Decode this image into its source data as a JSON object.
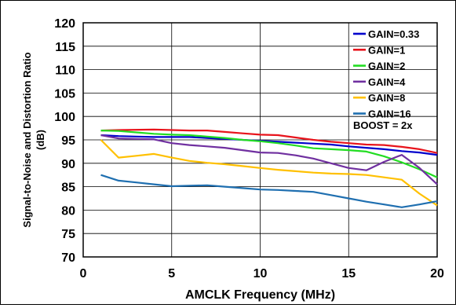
{
  "chart_data": {
    "type": "line",
    "xlabel": "AMCLK Frequency (MHz)",
    "ylabel": "Signal-to-Noise and Distortion Ratio",
    "ylabel_unit": "(dB)",
    "xlim": [
      0,
      20
    ],
    "ylim": [
      70,
      120
    ],
    "x_ticks": [
      0,
      5,
      10,
      15,
      20
    ],
    "y_ticks": [
      70,
      75,
      80,
      85,
      90,
      95,
      100,
      105,
      110,
      115,
      120
    ],
    "grid": true,
    "legend_position": "top-right",
    "annotation": "BOOST = 2x",
    "series": [
      {
        "name": "GAIN=0.33",
        "color": "#0000cc",
        "x": [
          1,
          2,
          3,
          4,
          5,
          6,
          7,
          8,
          9,
          10,
          11,
          12,
          13,
          14,
          15,
          16,
          17,
          18,
          19,
          20
        ],
        "y": [
          96.0,
          95.8,
          95.7,
          95.6,
          95.6,
          95.6,
          95.4,
          95.2,
          95.0,
          94.8,
          94.6,
          94.4,
          94.2,
          94.0,
          93.6,
          93.3,
          93.0,
          92.6,
          92.3,
          91.8
        ]
      },
      {
        "name": "GAIN=1",
        "color": "#e8141c",
        "x": [
          1,
          2,
          4,
          5,
          6,
          7,
          8,
          9,
          10,
          11,
          12,
          13,
          14,
          15,
          16,
          17,
          18,
          19,
          20
        ],
        "y": [
          97.0,
          97.1,
          97.2,
          97.1,
          97.0,
          97.0,
          96.7,
          96.4,
          96.1,
          96.0,
          95.5,
          95.0,
          94.6,
          94.3,
          94.0,
          93.9,
          93.5,
          93.0,
          92.2
        ]
      },
      {
        "name": "GAIN=2",
        "color": "#22dd22",
        "x": [
          1,
          2,
          3,
          4,
          5,
          6,
          7,
          8,
          9,
          10,
          11,
          12,
          13,
          14,
          15,
          16,
          17,
          18,
          19,
          20
        ],
        "y": [
          97.0,
          96.9,
          96.6,
          96.3,
          96.1,
          96.0,
          95.7,
          95.4,
          95.0,
          94.7,
          94.3,
          93.8,
          93.2,
          93.0,
          92.8,
          92.5,
          91.5,
          90.2,
          88.7,
          87.0
        ]
      },
      {
        "name": "GAIN=4",
        "color": "#7030a0",
        "x": [
          1,
          2,
          3,
          4,
          5,
          6,
          7,
          8,
          9,
          10,
          11,
          12,
          13,
          14,
          15,
          16,
          17,
          18,
          19,
          20
        ],
        "y": [
          96.0,
          95.3,
          95.2,
          95.1,
          94.3,
          93.9,
          93.6,
          93.3,
          92.8,
          92.3,
          92.2,
          91.7,
          91.0,
          90.0,
          89.0,
          88.5,
          90.3,
          91.8,
          89.0,
          85.5
        ]
      },
      {
        "name": "GAIN=8",
        "color": "#ffc000",
        "x": [
          1,
          2,
          3,
          4,
          5,
          6,
          7,
          8,
          9,
          10,
          11,
          12,
          13,
          14,
          15,
          16,
          17,
          18,
          19,
          20
        ],
        "y": [
          95.0,
          91.2,
          91.6,
          92.0,
          91.2,
          90.5,
          90.1,
          89.8,
          89.4,
          89.0,
          88.6,
          88.3,
          88.0,
          87.8,
          87.7,
          87.5,
          87.0,
          86.5,
          83.5,
          81.0
        ]
      },
      {
        "name": "GAIN=16",
        "color": "#1f6fb0",
        "x": [
          1,
          2,
          3,
          4,
          5,
          6,
          7,
          8,
          9,
          10,
          11,
          12,
          13,
          14,
          15,
          16,
          17,
          18,
          19,
          20
        ],
        "y": [
          87.5,
          86.3,
          85.9,
          85.5,
          85.1,
          85.2,
          85.3,
          85.0,
          84.7,
          84.4,
          84.3,
          84.1,
          83.9,
          83.2,
          82.5,
          81.8,
          81.2,
          80.6,
          81.2,
          81.9
        ]
      }
    ]
  }
}
